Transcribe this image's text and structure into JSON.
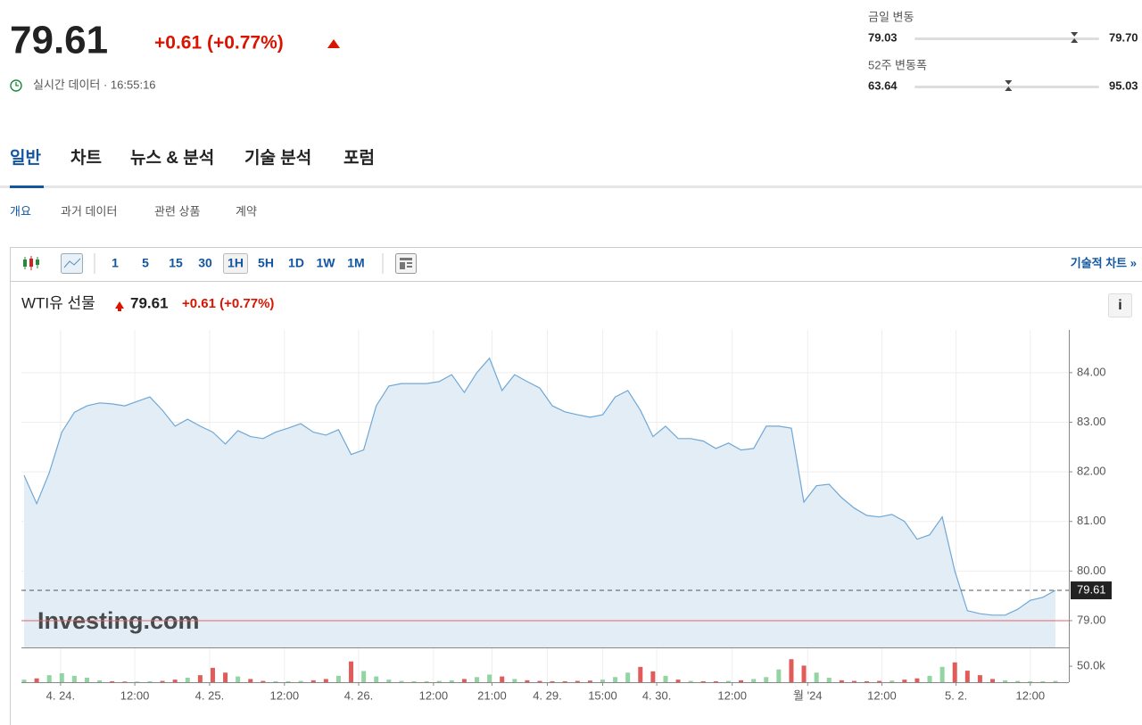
{
  "header": {
    "price": "79.61",
    "change": "+0.61 (+0.77%)",
    "status": "실시간 데이터 · 16:55:16"
  },
  "ranges": [
    {
      "label": "금일 변동",
      "low": "79.03",
      "high": "79.70"
    },
    {
      "label": "52주 변동폭",
      "low": "63.64",
      "high": "95.03"
    }
  ],
  "tabs": [
    "일반",
    "차트",
    "뉴스 & 분석",
    "기술 분석",
    "포럼"
  ],
  "subtabs": [
    "개요",
    "과거 데이터",
    "관련 상품",
    "계약"
  ],
  "toolbar": {
    "intervals": [
      "1",
      "5",
      "15",
      "30",
      "1H",
      "5H",
      "1D",
      "1W",
      "1M"
    ],
    "selected": "1H",
    "link": "기술적 차트 »"
  },
  "info_icon": "i",
  "watermark": "Investing.com",
  "chart_data": {
    "type": "line",
    "title": "WTI유 선물",
    "last_value": 79.61,
    "change": "+0.61 (+0.77%)",
    "prev_close": 79,
    "color": "#6fa8d6",
    "area_color": "#e3edf6",
    "prev_close_color": "#e06666",
    "values": [
      81.93,
      81.36,
      81.98,
      82.8,
      83.2,
      83.33,
      83.39,
      83.37,
      83.33,
      83.42,
      83.51,
      83.24,
      82.92,
      83.06,
      82.92,
      82.8,
      82.56,
      82.83,
      82.71,
      82.67,
      82.8,
      82.88,
      82.97,
      82.8,
      82.74,
      82.85,
      82.35,
      82.44,
      83.33,
      83.73,
      83.78,
      83.78,
      83.78,
      83.82,
      83.96,
      83.6,
      84.0,
      84.29,
      83.64,
      83.96,
      83.82,
      83.69,
      83.33,
      83.21,
      83.15,
      83.1,
      83.15,
      83.51,
      83.64,
      83.24,
      82.71,
      82.92,
      82.67,
      82.67,
      82.62,
      82.47,
      82.58,
      82.44,
      82.47,
      82.92,
      82.92,
      82.88,
      81.39,
      81.72,
      81.75,
      81.48,
      81.27,
      81.12,
      81.09,
      81.14,
      81.0,
      80.64,
      80.73,
      81.09,
      80.0,
      79.2,
      79.14,
      79.11,
      79.11,
      79.23,
      79.41,
      79.47,
      79.61
    ],
    "volume": [
      8000,
      12000,
      22000,
      28000,
      20000,
      14000,
      6000,
      3000,
      2000,
      2000,
      3000,
      4000,
      8000,
      14000,
      22000,
      45000,
      30000,
      18000,
      10000,
      4000,
      3000,
      3000,
      4000,
      6000,
      10000,
      20000,
      65000,
      35000,
      18000,
      8000,
      4000,
      3000,
      3000,
      4000,
      6000,
      10000,
      16000,
      24000,
      18000,
      10000,
      6000,
      4000,
      3000,
      3000,
      4000,
      5000,
      8000,
      16000,
      30000,
      48000,
      34000,
      20000,
      8000,
      4000,
      3000,
      3000,
      4000,
      6000,
      10000,
      16000,
      40000,
      72000,
      52000,
      30000,
      14000,
      6000,
      4000,
      3000,
      4000,
      5000,
      8000,
      12000,
      20000,
      48000,
      62000,
      36000,
      22000,
      10000,
      6000,
      4000,
      3000,
      3000,
      4000
    ],
    "volume_colors": {
      "up": "#92d4a2",
      "down": "#e15b5b"
    },
    "xlim": [
      0,
      82
    ],
    "xticks": [
      {
        "value": 2.9,
        "label": "4. 24."
      },
      {
        "value": 8.8,
        "label": "12:00"
      },
      {
        "value": 14.75,
        "label": "4. 25."
      },
      {
        "value": 20.7,
        "label": "12:00"
      },
      {
        "value": 26.6,
        "label": "4. 26."
      },
      {
        "value": 32.55,
        "label": "12:00"
      },
      {
        "value": 37.2,
        "label": "21:00"
      },
      {
        "value": 41.6,
        "label": "4. 29."
      },
      {
        "value": 46.0,
        "label": "15:00"
      },
      {
        "value": 50.3,
        "label": "4. 30."
      },
      {
        "value": 56.3,
        "label": "12:00"
      },
      {
        "value": 62.3,
        "label": "월 '24"
      },
      {
        "value": 68.2,
        "label": "12:00"
      },
      {
        "value": 74.1,
        "label": "5. 2."
      },
      {
        "value": 80.0,
        "label": "12:00"
      }
    ],
    "ylim": [
      78.46,
      84.86
    ],
    "yticks": [
      {
        "value": 79,
        "label": "79.00"
      },
      {
        "value": 80,
        "label": "80.00"
      },
      {
        "value": 81,
        "label": "81.00"
      },
      {
        "value": 82,
        "label": "82.00"
      },
      {
        "value": 83,
        "label": "83.00"
      },
      {
        "value": 84,
        "label": "84.00"
      }
    ],
    "volume_ylim": [
      0,
      109000
    ],
    "volume_yticks": [
      {
        "value": 50000,
        "label": "50.0k"
      }
    ],
    "grid": true
  }
}
